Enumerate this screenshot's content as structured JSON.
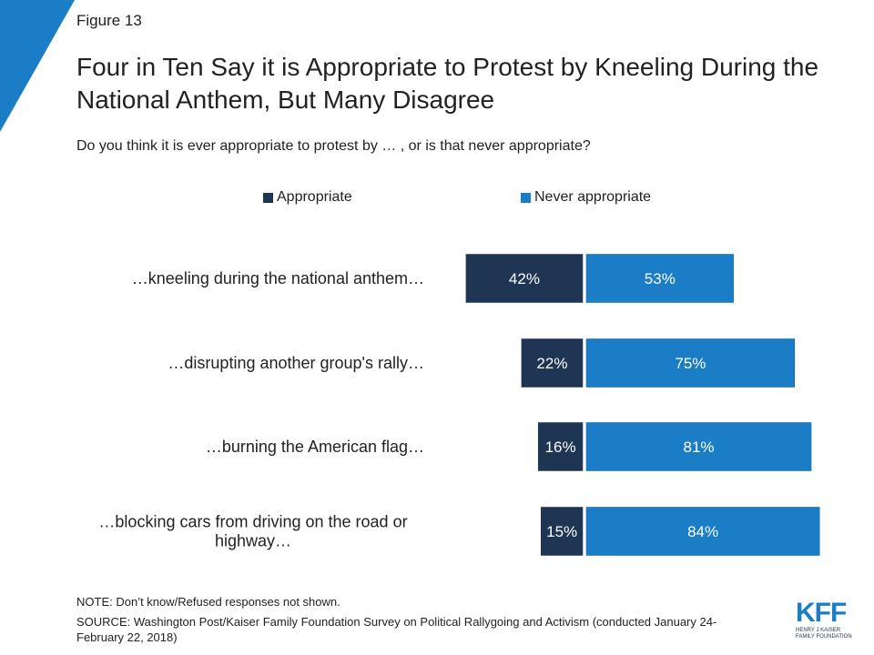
{
  "figure_label": "Figure 13",
  "title": "Four in Ten Say it is Appropriate to Protest by Kneeling During the National Anthem, But Many Disagree",
  "question": "Do you think it is ever appropriate to protest by … , or is that never appropriate?",
  "note": "NOTE: Don’t know/Refused responses not shown.",
  "source": "SOURCE: Washington Post/Kaiser Family Foundation Survey on Political Rallygoing and Activism (conducted January 24-February 22, 2018)",
  "logo": {
    "mark": "KFF",
    "line1": "HENRY J KAISER",
    "line2": "FAMILY FOUNDATION"
  },
  "colors": {
    "appropriate": "#1f3554",
    "never": "#1a7dc6",
    "corner": "#1a7dc6"
  },
  "chart_data": {
    "type": "bar",
    "orientation": "horizontal-diverging",
    "categories": [
      "…kneeling during the national anthem…",
      "…disrupting another group's rally…",
      "…burning the American flag…",
      "…blocking cars from driving on the road or highway…"
    ],
    "series": [
      {
        "name": "Appropriate",
        "values": [
          42,
          22,
          16,
          15
        ],
        "labels": [
          "42%",
          "22%",
          "16%",
          "15%"
        ]
      },
      {
        "name": "Never appropriate",
        "values": [
          53,
          75,
          81,
          84
        ],
        "labels": [
          "53%",
          "75%",
          "81%",
          "84%"
        ]
      }
    ],
    "legend": "top"
  }
}
